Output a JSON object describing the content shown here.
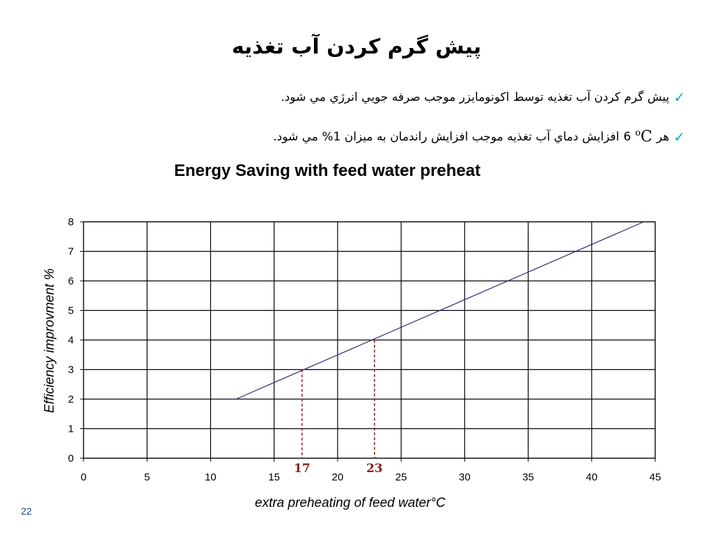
{
  "slide": {
    "title": "پيش گرم کردن آب تغذيه",
    "bullets": [
      {
        "text": "پيش گرم کردن آب تغذيه توسط اکونومايزر موجب صرفه جويي انرژي مي شود."
      },
      {
        "prefix": "هر",
        "deg_value": "6",
        "deg_unit": "C",
        "text": "افزايش دماي آب تغذيه موجب  افزايش راندمان به ميزان 1% مي شود."
      }
    ],
    "page_number": "22",
    "check_icon_color": "#1aa1c9"
  },
  "chart_data": {
    "type": "line",
    "title": "Energy Saving with feed water preheat",
    "xlabel": "extra preheating of feed water°C",
    "ylabel": "Efficiency improvment %",
    "xlim": [
      0,
      45
    ],
    "ylim": [
      0,
      8
    ],
    "xticks": [
      0,
      5,
      10,
      15,
      20,
      25,
      30,
      35,
      40,
      45
    ],
    "yticks": [
      0,
      1,
      2,
      3,
      4,
      5,
      6,
      7,
      8
    ],
    "grid": true,
    "series": [
      {
        "x": [
          12,
          44.1
        ],
        "y": [
          2,
          8
        ],
        "color": "#2a2a7a"
      }
    ],
    "annotations": [
      {
        "label": "17",
        "x": 17.2,
        "y": 3,
        "color": "#8b1a1a"
      },
      {
        "label": "23",
        "x": 22.9,
        "y": 4,
        "color": "#8b1a1a"
      }
    ]
  }
}
